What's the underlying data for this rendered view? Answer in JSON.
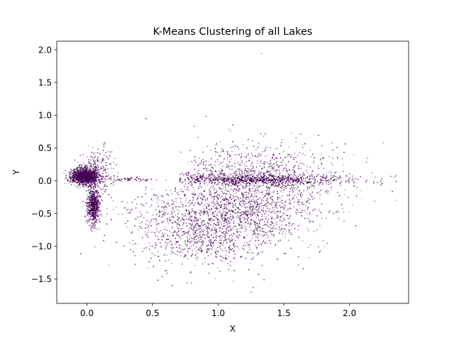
{
  "chart_data": {
    "type": "scatter",
    "title": "K-Means Clustering of all Lakes",
    "xlabel": "X",
    "ylabel": "Y",
    "xlim": [
      -0.23,
      2.45
    ],
    "ylim": [
      -1.87,
      2.13
    ],
    "x_ticks": [
      0.0,
      0.5,
      1.0,
      1.5,
      2.0
    ],
    "x_tick_labels": [
      "0.0",
      "0.5",
      "1.0",
      "1.5",
      "2.0"
    ],
    "y_ticks": [
      -1.5,
      -1.0,
      -0.5,
      0.0,
      0.5,
      1.0,
      1.5,
      2.0
    ],
    "y_tick_labels": [
      "−1.5",
      "−1.0",
      "−0.5",
      "0.0",
      "0.5",
      "1.0",
      "1.5",
      "2.0"
    ],
    "grid": false,
    "legend": "none",
    "marker_color": "#440154",
    "clusters": [
      {
        "center": [
          -0.02,
          0.07
        ],
        "spread": [
          0.05,
          0.06
        ],
        "count": 1400
      },
      {
        "center": [
          0.05,
          -0.38
        ],
        "spread": [
          0.025,
          0.14
        ],
        "count": 650
      },
      {
        "center": [
          0.08,
          0.15
        ],
        "spread": [
          0.06,
          0.18
        ],
        "count": 250
      },
      {
        "center": [
          1.25,
          0.02
        ],
        "spread": [
          0.38,
          0.04
        ],
        "count": 900
      },
      {
        "center": [
          1.12,
          -0.45
        ],
        "spread": [
          0.33,
          0.3
        ],
        "count": 1600
      },
      {
        "center": [
          1.35,
          0.15
        ],
        "spread": [
          0.32,
          0.22
        ],
        "count": 700
      },
      {
        "center": [
          0.85,
          -0.85
        ],
        "spread": [
          0.22,
          0.25
        ],
        "count": 500
      },
      {
        "center": [
          0.35,
          0.02
        ],
        "spread": [
          0.1,
          0.015
        ],
        "count": 60
      },
      {
        "center": [
          0.45,
          -0.7
        ],
        "spread": [
          0.15,
          0.3
        ],
        "count": 60
      }
    ],
    "outliers": [
      {
        "x": 1.33,
        "y": 1.94
      },
      {
        "x": 1.25,
        "y": -1.7
      },
      {
        "x": 0.65,
        "y": -1.6
      },
      {
        "x": 2.35,
        "y": -0.3
      },
      {
        "x": 0.45,
        "y": 0.95
      }
    ]
  }
}
